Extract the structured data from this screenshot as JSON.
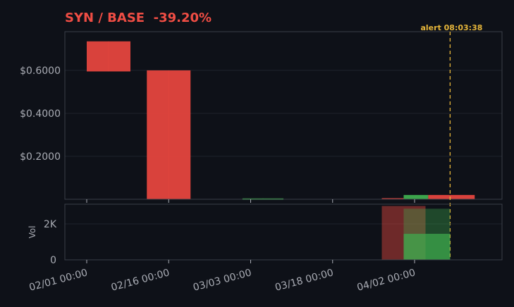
{
  "header": {
    "pair": "SYN / BASE",
    "change": "-39.20%"
  },
  "colors": {
    "up": "#3fae4f",
    "down": "#e5463e",
    "alert": "#e5b53a",
    "title": "#ef4d44"
  },
  "chart_data": [
    {
      "type": "candlestick",
      "title": "SYN / BASE  -39.20%",
      "y_ticks": [
        "$0.2000",
        "$0.4000",
        "$0.6000"
      ],
      "y_tick_values": [
        0.2,
        0.4,
        0.6
      ],
      "ylim": [
        0.0,
        0.78
      ],
      "x_ticks": [
        "02/01 00:00",
        "02/16 00:00",
        "03/03 00:00",
        "03/18 00:00",
        "04/02 00:00"
      ],
      "x_tick_days": [
        0,
        15,
        30,
        45,
        60
      ],
      "xlim_days": [
        -4,
        76
      ],
      "candles": [
        {
          "start_day": 0,
          "end_day": 8,
          "open": 0.735,
          "close": 0.595,
          "high": 0.735,
          "low": 0.595
        },
        {
          "start_day": 11,
          "end_day": 19,
          "open": 0.6,
          "close": 0.0,
          "high": 0.6,
          "low": 0.0
        },
        {
          "start_day": 28.5,
          "end_day": 36,
          "open": 0.0,
          "close": 0.004,
          "high": 0.004,
          "low": 0.0
        },
        {
          "start_day": 54,
          "end_day": 58,
          "open": 0.005,
          "close": 0.0,
          "high": 0.005,
          "low": 0.0
        },
        {
          "start_day": 58,
          "end_day": 62.5,
          "open": 0.0,
          "close": 0.02,
          "high": 0.02,
          "low": 0.0
        },
        {
          "start_day": 62.5,
          "end_day": 71,
          "open": 0.02,
          "close": 0.0,
          "high": 0.02,
          "low": 0.0
        }
      ],
      "alert": {
        "label": "alert 08:03:38",
        "day": 66.5
      }
    },
    {
      "type": "bar",
      "ylabel": "Vol",
      "y_ticks": [
        "0",
        "2K"
      ],
      "y_tick_values": [
        0,
        2000
      ],
      "ylim": [
        0,
        3100
      ],
      "bars": [
        {
          "start_day": 54,
          "end_day": 62,
          "value": 3000,
          "color": "down"
        },
        {
          "start_day": 58,
          "end_day": 66.5,
          "value": 2850,
          "color": "up",
          "opacity": 0.35
        },
        {
          "start_day": 58,
          "end_day": 66.5,
          "value": 1450,
          "color": "up",
          "opacity": 0.7
        }
      ]
    }
  ]
}
